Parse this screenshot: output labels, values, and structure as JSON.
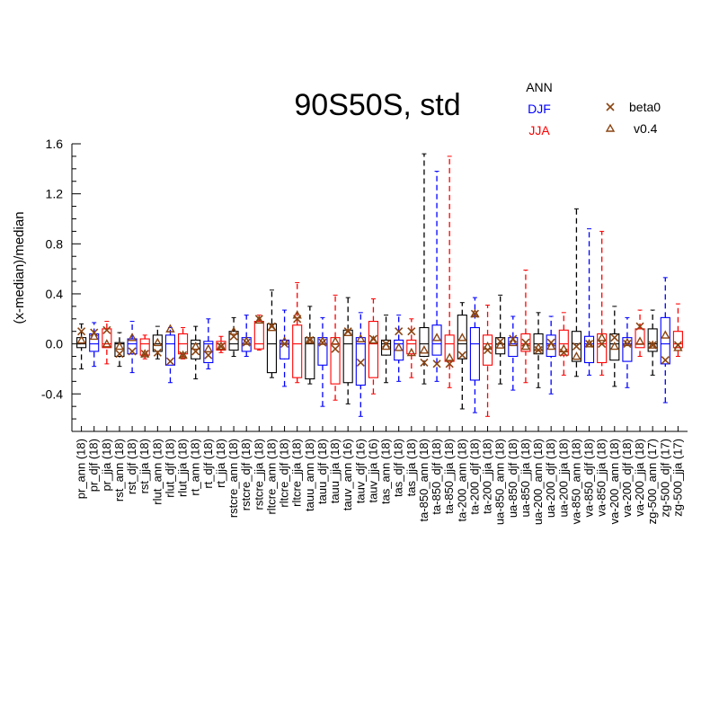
{
  "chart_data": {
    "type": "box",
    "title": "90S50S, std",
    "ylabel": "(x-median)/median",
    "xlabel": "",
    "ylim": [
      -0.7,
      1.6
    ],
    "yticks": [
      -0.4,
      0.0,
      0.4,
      0.8,
      1.2,
      1.6
    ],
    "ytick_labels": [
      "-0.4",
      "0.0",
      "0.4",
      "0.8",
      "1.2",
      "1.6"
    ],
    "season_legend": [
      {
        "label": "ANN",
        "color": "#000000"
      },
      {
        "label": "DJF",
        "color": "#0000ff"
      },
      {
        "label": "JJA",
        "color": "#ff0000"
      }
    ],
    "marker_legend": [
      {
        "label": "beta0",
        "marker": "x"
      },
      {
        "label": "v0.4",
        "marker": "triangle"
      }
    ],
    "marker_color": "#8b4513",
    "categories": [
      "pr_ann (18)",
      "pr_djf (18)",
      "pr_jja (18)",
      "rst_ann (18)",
      "rst_djf (18)",
      "rst_jja (18)",
      "rlut_ann (18)",
      "rlut_djf (18)",
      "rlut_jja (18)",
      "rt_ann (18)",
      "rt_djf (18)",
      "rt_jja (18)",
      "rstcre_ann (18)",
      "rstcre_djf (18)",
      "rstcre_jja (18)",
      "rltcre_ann (18)",
      "rltcre_djf (18)",
      "rltcre_jja (18)",
      "tauu_ann (18)",
      "tauu_djf (18)",
      "tauu_jja (18)",
      "tauv_ann (16)",
      "tauv_djf (16)",
      "tauv_jja (16)",
      "tas_ann (18)",
      "tas_djf (18)",
      "tas_jja (18)",
      "ta-850_ann (18)",
      "ta-850_djf (18)",
      "ta-850_jja (18)",
      "ta-200_ann (18)",
      "ta-200_djf (18)",
      "ta-200_jja (18)",
      "ua-850_ann (18)",
      "ua-850_djf (18)",
      "ua-850_jja (18)",
      "ua-200_ann (18)",
      "ua-200_djf (18)",
      "ua-200_jja (18)",
      "va-850_ann (18)",
      "va-850_djf (18)",
      "va-850_jja (18)",
      "va-200_ann (18)",
      "va-200_djf (18)",
      "va-200_jja (18)",
      "zg-500_ann (17)",
      "zg-500_djf (17)",
      "zg-500_jja (17)"
    ],
    "series": [
      {
        "name": "box",
        "values": [
          {
            "wl": -0.2,
            "q1": -0.03,
            "med": 0.0,
            "q3": 0.05,
            "wh": 0.16,
            "beta0": 0.1,
            "v04": 0.03
          },
          {
            "wl": -0.18,
            "q1": -0.06,
            "med": 0.0,
            "q3": 0.08,
            "wh": 0.17,
            "beta0": 0.09,
            "v04": 0.06
          },
          {
            "wl": -0.16,
            "q1": -0.03,
            "med": 0.0,
            "q3": 0.12,
            "wh": 0.18,
            "beta0": 0.11,
            "v04": 0.0
          },
          {
            "wl": -0.18,
            "q1": -0.1,
            "med": 0.0,
            "q3": 0.01,
            "wh": 0.09,
            "beta0": -0.08,
            "v04": -0.02
          },
          {
            "wl": -0.23,
            "q1": -0.08,
            "med": 0.0,
            "q3": 0.04,
            "wh": 0.18,
            "beta0": -0.06,
            "v04": 0.05
          },
          {
            "wl": -0.12,
            "q1": -0.09,
            "med": 0.0,
            "q3": 0.04,
            "wh": 0.07,
            "beta0": -0.08,
            "v04": -0.08
          },
          {
            "wl": -0.12,
            "q1": -0.06,
            "med": 0.0,
            "q3": 0.07,
            "wh": 0.14,
            "beta0": -0.07,
            "v04": 0.01
          },
          {
            "wl": -0.31,
            "q1": -0.17,
            "med": 0.0,
            "q3": 0.07,
            "wh": 0.13,
            "beta0": -0.14,
            "v04": 0.12
          },
          {
            "wl": -0.12,
            "q1": -0.08,
            "med": 0.0,
            "q3": 0.08,
            "wh": 0.13,
            "beta0": -0.09,
            "v04": -0.09
          },
          {
            "wl": -0.28,
            "q1": -0.12,
            "med": 0.0,
            "q3": 0.03,
            "wh": 0.14,
            "beta0": -0.06,
            "v04": -0.02
          },
          {
            "wl": -0.2,
            "q1": -0.15,
            "med": 0.0,
            "q3": 0.02,
            "wh": 0.2,
            "beta0": -0.09,
            "v04": -0.04
          },
          {
            "wl": -0.07,
            "q1": -0.05,
            "med": 0.0,
            "q3": 0.02,
            "wh": 0.06,
            "beta0": -0.02,
            "v04": -0.02
          },
          {
            "wl": -0.1,
            "q1": -0.05,
            "med": 0.0,
            "q3": 0.1,
            "wh": 0.21,
            "beta0": 0.06,
            "v04": 0.1
          },
          {
            "wl": -0.1,
            "q1": -0.06,
            "med": 0.0,
            "q3": 0.05,
            "wh": 0.23,
            "beta0": 0.01,
            "v04": 0.02
          },
          {
            "wl": -0.05,
            "q1": -0.04,
            "med": 0.0,
            "q3": 0.18,
            "wh": 0.23,
            "beta0": 0.2,
            "v04": 0.19
          },
          {
            "wl": -0.27,
            "q1": -0.23,
            "med": 0.0,
            "q3": 0.16,
            "wh": 0.43,
            "beta0": 0.14,
            "v04": 0.13
          },
          {
            "wl": -0.34,
            "q1": -0.12,
            "med": 0.0,
            "q3": 0.03,
            "wh": 0.27,
            "beta0": 0.0,
            "v04": 0.02
          },
          {
            "wl": -0.31,
            "q1": -0.27,
            "med": 0.0,
            "q3": 0.15,
            "wh": 0.49,
            "beta0": 0.2,
            "v04": 0.23
          },
          {
            "wl": -0.32,
            "q1": -0.28,
            "med": 0.0,
            "q3": 0.05,
            "wh": 0.3,
            "beta0": 0.03,
            "v04": 0.03
          },
          {
            "wl": -0.5,
            "q1": -0.17,
            "med": 0.0,
            "q3": 0.05,
            "wh": 0.21,
            "beta0": 0.01,
            "v04": 0.02
          },
          {
            "wl": -0.45,
            "q1": -0.32,
            "med": 0.0,
            "q3": 0.05,
            "wh": 0.39,
            "beta0": -0.04,
            "v04": 0.02
          },
          {
            "wl": -0.48,
            "q1": -0.31,
            "med": 0.0,
            "q3": 0.11,
            "wh": 0.37,
            "beta0": 0.1,
            "v04": 0.09
          },
          {
            "wl": -0.58,
            "q1": -0.33,
            "med": 0.0,
            "q3": 0.05,
            "wh": 0.25,
            "beta0": -0.15,
            "v04": 0.04
          },
          {
            "wl": -0.4,
            "q1": -0.27,
            "med": 0.0,
            "q3": 0.18,
            "wh": 0.36,
            "beta0": 0.04,
            "v04": 0.03
          },
          {
            "wl": -0.31,
            "q1": -0.09,
            "med": 0.0,
            "q3": 0.03,
            "wh": 0.23,
            "beta0": 0.0,
            "v04": -0.02
          },
          {
            "wl": -0.3,
            "q1": -0.13,
            "med": 0.0,
            "q3": 0.03,
            "wh": 0.23,
            "beta0": 0.1,
            "v04": -0.03
          },
          {
            "wl": -0.27,
            "q1": -0.08,
            "med": 0.0,
            "q3": 0.03,
            "wh": 0.2,
            "beta0": 0.1,
            "v04": -0.07
          },
          {
            "wl": -0.32,
            "q1": -0.1,
            "med": 0.0,
            "q3": 0.13,
            "wh": 1.52,
            "beta0": -0.15,
            "v04": -0.05
          },
          {
            "wl": -0.3,
            "q1": -0.09,
            "med": 0.0,
            "q3": 0.15,
            "wh": 1.38,
            "beta0": -0.16,
            "v04": 0.05
          },
          {
            "wl": -0.35,
            "q1": -0.14,
            "med": 0.0,
            "q3": 0.07,
            "wh": 1.5,
            "beta0": -0.16,
            "v04": -0.11
          },
          {
            "wl": -0.52,
            "q1": -0.12,
            "med": 0.0,
            "q3": 0.23,
            "wh": 0.33,
            "beta0": -0.09,
            "v04": 0.05
          },
          {
            "wl": -0.55,
            "q1": -0.29,
            "med": 0.0,
            "q3": 0.13,
            "wh": 0.37,
            "beta0": 0.24,
            "v04": 0.24
          },
          {
            "wl": -0.58,
            "q1": -0.17,
            "med": 0.0,
            "q3": 0.07,
            "wh": 0.31,
            "beta0": -0.05,
            "v04": -0.02
          },
          {
            "wl": -0.32,
            "q1": -0.08,
            "med": 0.0,
            "q3": 0.05,
            "wh": 0.39,
            "beta0": 0.02,
            "v04": -0.01
          },
          {
            "wl": -0.37,
            "q1": -0.1,
            "med": 0.0,
            "q3": 0.05,
            "wh": 0.22,
            "beta0": 0.04,
            "v04": 0.01
          },
          {
            "wl": -0.31,
            "q1": -0.06,
            "med": 0.0,
            "q3": 0.08,
            "wh": 0.59,
            "beta0": 0.01,
            "v04": -0.02
          },
          {
            "wl": -0.35,
            "q1": -0.08,
            "med": 0.0,
            "q3": 0.08,
            "wh": 0.25,
            "beta0": -0.05,
            "v04": -0.03
          },
          {
            "wl": -0.4,
            "q1": -0.1,
            "med": 0.0,
            "q3": 0.07,
            "wh": 0.22,
            "beta0": 0.01,
            "v04": -0.02
          },
          {
            "wl": -0.25,
            "q1": -0.09,
            "med": 0.0,
            "q3": 0.11,
            "wh": 0.25,
            "beta0": -0.07,
            "v04": -0.04
          },
          {
            "wl": -0.26,
            "q1": -0.14,
            "med": 0.0,
            "q3": 0.1,
            "wh": 1.08,
            "beta0": -0.02,
            "v04": -0.1
          },
          {
            "wl": -0.25,
            "q1": -0.15,
            "med": 0.0,
            "q3": 0.06,
            "wh": 0.92,
            "beta0": 0.0,
            "v04": 0.0
          },
          {
            "wl": -0.25,
            "q1": -0.15,
            "med": 0.0,
            "q3": 0.08,
            "wh": 0.9,
            "beta0": 0.0,
            "v04": 0.05
          },
          {
            "wl": -0.34,
            "q1": -0.13,
            "med": 0.0,
            "q3": 0.08,
            "wh": 0.3,
            "beta0": 0.05,
            "v04": -0.02
          },
          {
            "wl": -0.35,
            "q1": -0.14,
            "med": 0.0,
            "q3": 0.05,
            "wh": 0.21,
            "beta0": 0.0,
            "v04": 0.01
          },
          {
            "wl": -0.1,
            "q1": -0.03,
            "med": 0.0,
            "q3": 0.12,
            "wh": 0.27,
            "beta0": 0.14,
            "v04": 0.02
          },
          {
            "wl": -0.25,
            "q1": -0.06,
            "med": 0.0,
            "q3": 0.12,
            "wh": 0.27,
            "beta0": -0.01,
            "v04": -0.01
          },
          {
            "wl": -0.47,
            "q1": -0.16,
            "med": 0.0,
            "q3": 0.21,
            "wh": 0.53,
            "beta0": -0.13,
            "v04": 0.07
          },
          {
            "wl": -0.1,
            "q1": -0.03,
            "med": 0.0,
            "q3": 0.1,
            "wh": 0.32,
            "beta0": -0.01,
            "v04": -0.03
          }
        ]
      }
    ],
    "grid": false,
    "legend_position": "top-right"
  }
}
